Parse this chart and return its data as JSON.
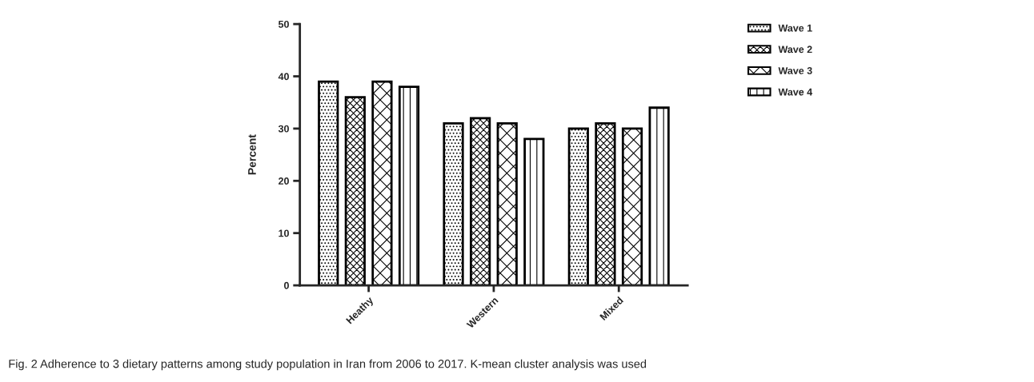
{
  "chart_data": {
    "type": "bar",
    "ylabel": "Percent",
    "categories": [
      "Heathy",
      "Western",
      "Mixed"
    ],
    "series": [
      {
        "name": "Wave 1",
        "color": "#000000",
        "values": [
          39,
          31,
          30
        ]
      },
      {
        "name": "Wave 2",
        "color": "#000000",
        "values": [
          36,
          32,
          31
        ]
      },
      {
        "name": "Wave 3",
        "color": "#000000",
        "values": [
          39,
          31,
          30
        ]
      },
      {
        "name": "Wave 4",
        "color": "#000000",
        "values": [
          38,
          28,
          34
        ]
      }
    ],
    "ylim": [
      0,
      50
    ],
    "yticks": [
      0,
      10,
      20,
      30,
      40,
      50
    ],
    "grid": false,
    "legend": "top right",
    "annotations": [
      "Fig. 2 Adherence to 3 dietary patterns among study population in Iran from 2006 to 2017. K-mean cluster analysis was used"
    ]
  }
}
